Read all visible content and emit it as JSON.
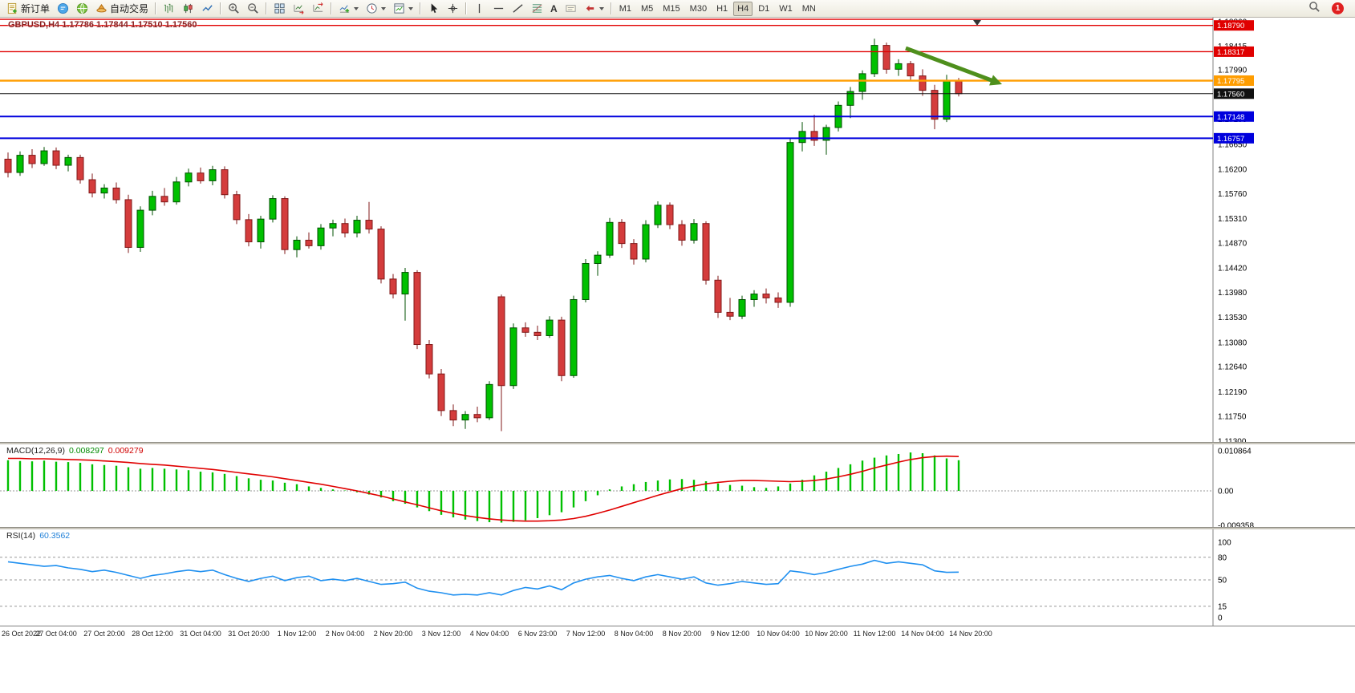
{
  "toolbar": {
    "new_order_label": "新订单",
    "auto_trading_label": "自动交易",
    "text_tool_label": "A",
    "timeframes": [
      "M1",
      "M5",
      "M15",
      "M30",
      "H1",
      "H4",
      "D1",
      "W1",
      "MN"
    ],
    "active_timeframe": "H4",
    "notification_count": "1"
  },
  "chart_data": [
    {
      "type": "candlestick",
      "symbol": "GBPUSD",
      "period": "H4",
      "title": "GBPUSD,H4 1.17786 1.17844 1.17510 1.17560",
      "open": "1.17786",
      "high": "1.17844",
      "low": "1.17510",
      "close": "1.17560",
      "ylim": [
        1.1127,
        1.1893
      ],
      "price_axis_ticks": [
        1.1886,
        1.18415,
        1.1799,
        1.17545,
        1.171,
        1.1665,
        1.162,
        1.1576,
        1.1531,
        1.1487,
        1.1442,
        1.1398,
        1.1353,
        1.1308,
        1.1264,
        1.1219,
        1.1175,
        1.113
      ],
      "hlines": [
        {
          "price": 1.189,
          "label": "1.18900",
          "color": "#e00000",
          "width": 1.4,
          "badge": false
        },
        {
          "price": 1.1879,
          "label": "1.18790",
          "color": "#e00000",
          "width": 1.4
        },
        {
          "price": 1.18317,
          "label": "1.18317",
          "color": "#e00000",
          "width": 1.4
        },
        {
          "price": 1.17795,
          "label": "1.17795",
          "color": "#ff9d00",
          "width": 2.4
        },
        {
          "price": 1.1756,
          "label": "1.17560",
          "color": "#111111",
          "width": 1
        },
        {
          "price": 1.17148,
          "label": "1.17148",
          "color": "#0000dd",
          "width": 2
        },
        {
          "price": 1.16757,
          "label": "1.16757",
          "color": "#0000dd",
          "width": 2
        }
      ],
      "colors": {
        "up": "#00c000",
        "down": "#d43c3c",
        "up_border": "#005000",
        "down_border": "#801818",
        "background": "#ffffff"
      },
      "annotation_arrow": {
        "from_index": 74.6,
        "from_price": 1.1838,
        "to_index": 82.6,
        "to_price": 1.1773,
        "color": "#4e8f1c"
      },
      "time_labels": [
        "26 Oct 2022",
        "27 Oct 04:00",
        "27 Oct 20:00",
        "28 Oct 12:00",
        "31 Oct 04:00",
        "31 Oct 20:00",
        "1 Nov 12:00",
        "2 Nov 04:00",
        "2 Nov 20:00",
        "3 Nov 12:00",
        "4 Nov 04:00",
        "6 Nov 23:00",
        "7 Nov 12:00",
        "8 Nov 04:00",
        "8 Nov 20:00",
        "9 Nov 12:00",
        "10 Nov 04:00",
        "10 Nov 20:00",
        "11 Nov 12:00",
        "14 Nov 04:00",
        "14 Nov 20:00"
      ],
      "candles": [
        [
          1.1638,
          1.165,
          1.1605,
          1.1614
        ],
        [
          1.1614,
          1.1652,
          1.1608,
          1.1645
        ],
        [
          1.1645,
          1.1656,
          1.1622,
          1.163
        ],
        [
          1.163,
          1.166,
          1.1626,
          1.1653
        ],
        [
          1.1653,
          1.1659,
          1.162,
          1.1627
        ],
        [
          1.1627,
          1.1646,
          1.1616,
          1.1641
        ],
        [
          1.1641,
          1.1646,
          1.1594,
          1.1601
        ],
        [
          1.1601,
          1.1612,
          1.1569,
          1.1577
        ],
        [
          1.1577,
          1.1593,
          1.1567,
          1.1586
        ],
        [
          1.1586,
          1.1596,
          1.1558,
          1.1565
        ],
        [
          1.1565,
          1.1574,
          1.1469,
          1.1479
        ],
        [
          1.1479,
          1.1553,
          1.1471,
          1.1546
        ],
        [
          1.1546,
          1.1581,
          1.1537,
          1.1571
        ],
        [
          1.1571,
          1.1586,
          1.1554,
          1.1561
        ],
        [
          1.1561,
          1.1606,
          1.1556,
          1.1597
        ],
        [
          1.1597,
          1.1621,
          1.1589,
          1.1613
        ],
        [
          1.1613,
          1.1623,
          1.1594,
          1.1599
        ],
        [
          1.1599,
          1.1626,
          1.1591,
          1.1619
        ],
        [
          1.1619,
          1.1625,
          1.1567,
          1.1574
        ],
        [
          1.1574,
          1.1581,
          1.1521,
          1.1529
        ],
        [
          1.1529,
          1.1539,
          1.1481,
          1.1489
        ],
        [
          1.1489,
          1.1536,
          1.1477,
          1.153
        ],
        [
          1.153,
          1.1573,
          1.1524,
          1.1567
        ],
        [
          1.1567,
          1.1571,
          1.1467,
          1.1475
        ],
        [
          1.1475,
          1.1499,
          1.1461,
          1.1492
        ],
        [
          1.1492,
          1.1506,
          1.1477,
          1.1482
        ],
        [
          1.1482,
          1.1521,
          1.1475,
          1.1514
        ],
        [
          1.1514,
          1.1529,
          1.1499,
          1.1522
        ],
        [
          1.1522,
          1.1531,
          1.1497,
          1.1505
        ],
        [
          1.1505,
          1.1536,
          1.1497,
          1.1528
        ],
        [
          1.1528,
          1.1561,
          1.1504,
          1.1512
        ],
        [
          1.1512,
          1.1517,
          1.1414,
          1.1422
        ],
        [
          1.1422,
          1.1431,
          1.1387,
          1.1395
        ],
        [
          1.1395,
          1.1442,
          1.1347,
          1.1434
        ],
        [
          1.1434,
          1.1438,
          1.1296,
          1.1304
        ],
        [
          1.1304,
          1.1312,
          1.1243,
          1.1251
        ],
        [
          1.1251,
          1.126,
          1.1175,
          1.1185
        ],
        [
          1.1185,
          1.1196,
          1.1157,
          1.1168
        ],
        [
          1.1168,
          1.1184,
          1.1152,
          1.1178
        ],
        [
          1.1178,
          1.1192,
          1.1164,
          1.1172
        ],
        [
          1.1172,
          1.1238,
          1.1168,
          1.1232
        ],
        [
          1.139,
          1.1394,
          1.1148,
          1.123
        ],
        [
          1.123,
          1.1342,
          1.1224,
          1.1334
        ],
        [
          1.1334,
          1.1344,
          1.1318,
          1.1326
        ],
        [
          1.1326,
          1.1338,
          1.1312,
          1.132
        ],
        [
          1.132,
          1.1355,
          1.1316,
          1.1348
        ],
        [
          1.1348,
          1.1354,
          1.1238,
          1.1248
        ],
        [
          1.1248,
          1.1392,
          1.1244,
          1.1385
        ],
        [
          1.1385,
          1.1458,
          1.138,
          1.145
        ],
        [
          1.145,
          1.1472,
          1.1428,
          1.1465
        ],
        [
          1.1465,
          1.1532,
          1.146,
          1.1524
        ],
        [
          1.1524,
          1.153,
          1.1478,
          1.1486
        ],
        [
          1.1486,
          1.1494,
          1.1448,
          1.1458
        ],
        [
          1.1458,
          1.1528,
          1.1452,
          1.152
        ],
        [
          1.152,
          1.1562,
          1.1514,
          1.1555
        ],
        [
          1.1555,
          1.156,
          1.1512,
          1.152
        ],
        [
          1.152,
          1.1528,
          1.1482,
          1.1492
        ],
        [
          1.1492,
          1.153,
          1.1486,
          1.1522
        ],
        [
          1.1522,
          1.1526,
          1.1412,
          1.142
        ],
        [
          1.142,
          1.1428,
          1.1352,
          1.1362
        ],
        [
          1.1362,
          1.1388,
          1.1348,
          1.1355
        ],
        [
          1.1355,
          1.1392,
          1.135,
          1.1385
        ],
        [
          1.1385,
          1.1402,
          1.1372,
          1.1395
        ],
        [
          1.1395,
          1.1405,
          1.1378,
          1.1388
        ],
        [
          1.1388,
          1.1398,
          1.137,
          1.138
        ],
        [
          1.138,
          1.1676,
          1.1372,
          1.1668
        ],
        [
          1.1668,
          1.1705,
          1.1652,
          1.1688
        ],
        [
          1.1688,
          1.1718,
          1.1662,
          1.1672
        ],
        [
          1.1672,
          1.17,
          1.1646,
          1.1695
        ],
        [
          1.1695,
          1.1742,
          1.1688,
          1.1735
        ],
        [
          1.1735,
          1.1768,
          1.1712,
          1.176
        ],
        [
          1.176,
          1.1798,
          1.1745,
          1.1792
        ],
        [
          1.1792,
          1.1855,
          1.1786,
          1.1843
        ],
        [
          1.1843,
          1.1848,
          1.1792,
          1.18
        ],
        [
          1.18,
          1.1818,
          1.1788,
          1.181
        ],
        [
          1.181,
          1.1815,
          1.178,
          1.1788
        ],
        [
          1.1788,
          1.18,
          1.1752,
          1.1762
        ],
        [
          1.1762,
          1.1772,
          1.1692,
          1.171
        ],
        [
          1.171,
          1.179,
          1.1705,
          1.1779
        ],
        [
          1.17786,
          1.17844,
          1.1751,
          1.1756
        ]
      ]
    },
    {
      "type": "bar",
      "name": "MACD",
      "label": "MACD(12,26,9)",
      "value_main": "0.008297",
      "value_signal": "0.009279",
      "ylim": [
        -0.009358,
        0.010864
      ],
      "colors": {
        "histogram": "#00c000",
        "signal": "#e00000"
      },
      "axis_labels": [
        {
          "v": 0.010864,
          "label": "0.010864"
        },
        {
          "v": 0,
          "label": "0.00"
        },
        {
          "v": -0.009358,
          "label": "-0.009358"
        }
      ],
      "histogram": [
        0.0083,
        0.0081,
        0.008,
        0.0082,
        0.0079,
        0.0078,
        0.0076,
        0.0072,
        0.007,
        0.0068,
        0.0064,
        0.006,
        0.0062,
        0.006,
        0.0058,
        0.0056,
        0.0052,
        0.005,
        0.0046,
        0.004,
        0.0034,
        0.003,
        0.0028,
        0.0022,
        0.0018,
        0.0012,
        0.0008,
        0.0004,
        0.0001,
        -0.0004,
        -0.001,
        -0.0018,
        -0.0028,
        -0.0035,
        -0.0045,
        -0.0055,
        -0.0065,
        -0.0072,
        -0.0078,
        -0.0082,
        -0.0085,
        -0.0086,
        -0.0084,
        -0.008,
        -0.0074,
        -0.0066,
        -0.0058,
        -0.0045,
        -0.0028,
        -0.0012,
        0.0004,
        0.0012,
        0.0018,
        0.0024,
        0.0028,
        0.0031,
        0.0032,
        0.003,
        0.0026,
        0.002,
        0.0016,
        0.0014,
        0.001,
        0.0008,
        0.0012,
        0.002,
        0.003,
        0.0042,
        0.0052,
        0.0062,
        0.0072,
        0.0082,
        0.009,
        0.0096,
        0.01,
        0.0104,
        0.0102,
        0.0096,
        0.0088,
        0.0083
      ],
      "signal": [
        0.0088,
        0.0088,
        0.0087,
        0.0087,
        0.0086,
        0.0085,
        0.0084,
        0.0083,
        0.0081,
        0.0079,
        0.0077,
        0.0074,
        0.0072,
        0.007,
        0.0067,
        0.0064,
        0.0061,
        0.0058,
        0.0054,
        0.005,
        0.0046,
        0.0042,
        0.0038,
        0.0033,
        0.0028,
        0.0023,
        0.0018,
        0.0012,
        0.0006,
        0.0,
        -0.0007,
        -0.0014,
        -0.0022,
        -0.003,
        -0.0038,
        -0.0046,
        -0.0054,
        -0.0061,
        -0.0067,
        -0.0072,
        -0.0076,
        -0.0079,
        -0.0081,
        -0.0082,
        -0.0082,
        -0.0081,
        -0.0079,
        -0.0075,
        -0.0069,
        -0.0061,
        -0.0052,
        -0.0042,
        -0.0032,
        -0.0022,
        -0.0012,
        -0.0003,
        0.0006,
        0.0013,
        0.0019,
        0.0023,
        0.0026,
        0.0028,
        0.0028,
        0.0027,
        0.0026,
        0.0025,
        0.0026,
        0.0028,
        0.0032,
        0.0038,
        0.0045,
        0.0053,
        0.0062,
        0.007,
        0.0078,
        0.0085,
        0.009,
        0.0093,
        0.0094,
        0.0093
      ]
    },
    {
      "type": "line",
      "name": "RSI",
      "label": "RSI(14)",
      "value": "60.3562",
      "ylim": [
        0,
        100
      ],
      "levels": [
        80,
        50,
        15
      ],
      "colors": {
        "line": "#2090f0",
        "level": "#999999"
      },
      "axis_labels": [
        {
          "v": 100,
          "label": "100"
        },
        {
          "v": 80,
          "label": "80"
        },
        {
          "v": 50,
          "label": "50"
        },
        {
          "v": 15,
          "label": "15"
        },
        {
          "v": 0,
          "label": "0"
        }
      ],
      "values": [
        74,
        72,
        70,
        68,
        69,
        66,
        64,
        61,
        63,
        60,
        56,
        52,
        56,
        58,
        61,
        63,
        61,
        63,
        57,
        52,
        48,
        52,
        55,
        49,
        53,
        55,
        49,
        51,
        49,
        52,
        48,
        44,
        45,
        47,
        39,
        35,
        33,
        30,
        31,
        30,
        33,
        30,
        36,
        40,
        38,
        42,
        37,
        46,
        51,
        54,
        56,
        52,
        49,
        54,
        57,
        54,
        51,
        54,
        46,
        43,
        45,
        48,
        46,
        44,
        45,
        62,
        60,
        57,
        60,
        64,
        68,
        71,
        76,
        72,
        74,
        72,
        70,
        62,
        60,
        60.36
      ]
    }
  ]
}
